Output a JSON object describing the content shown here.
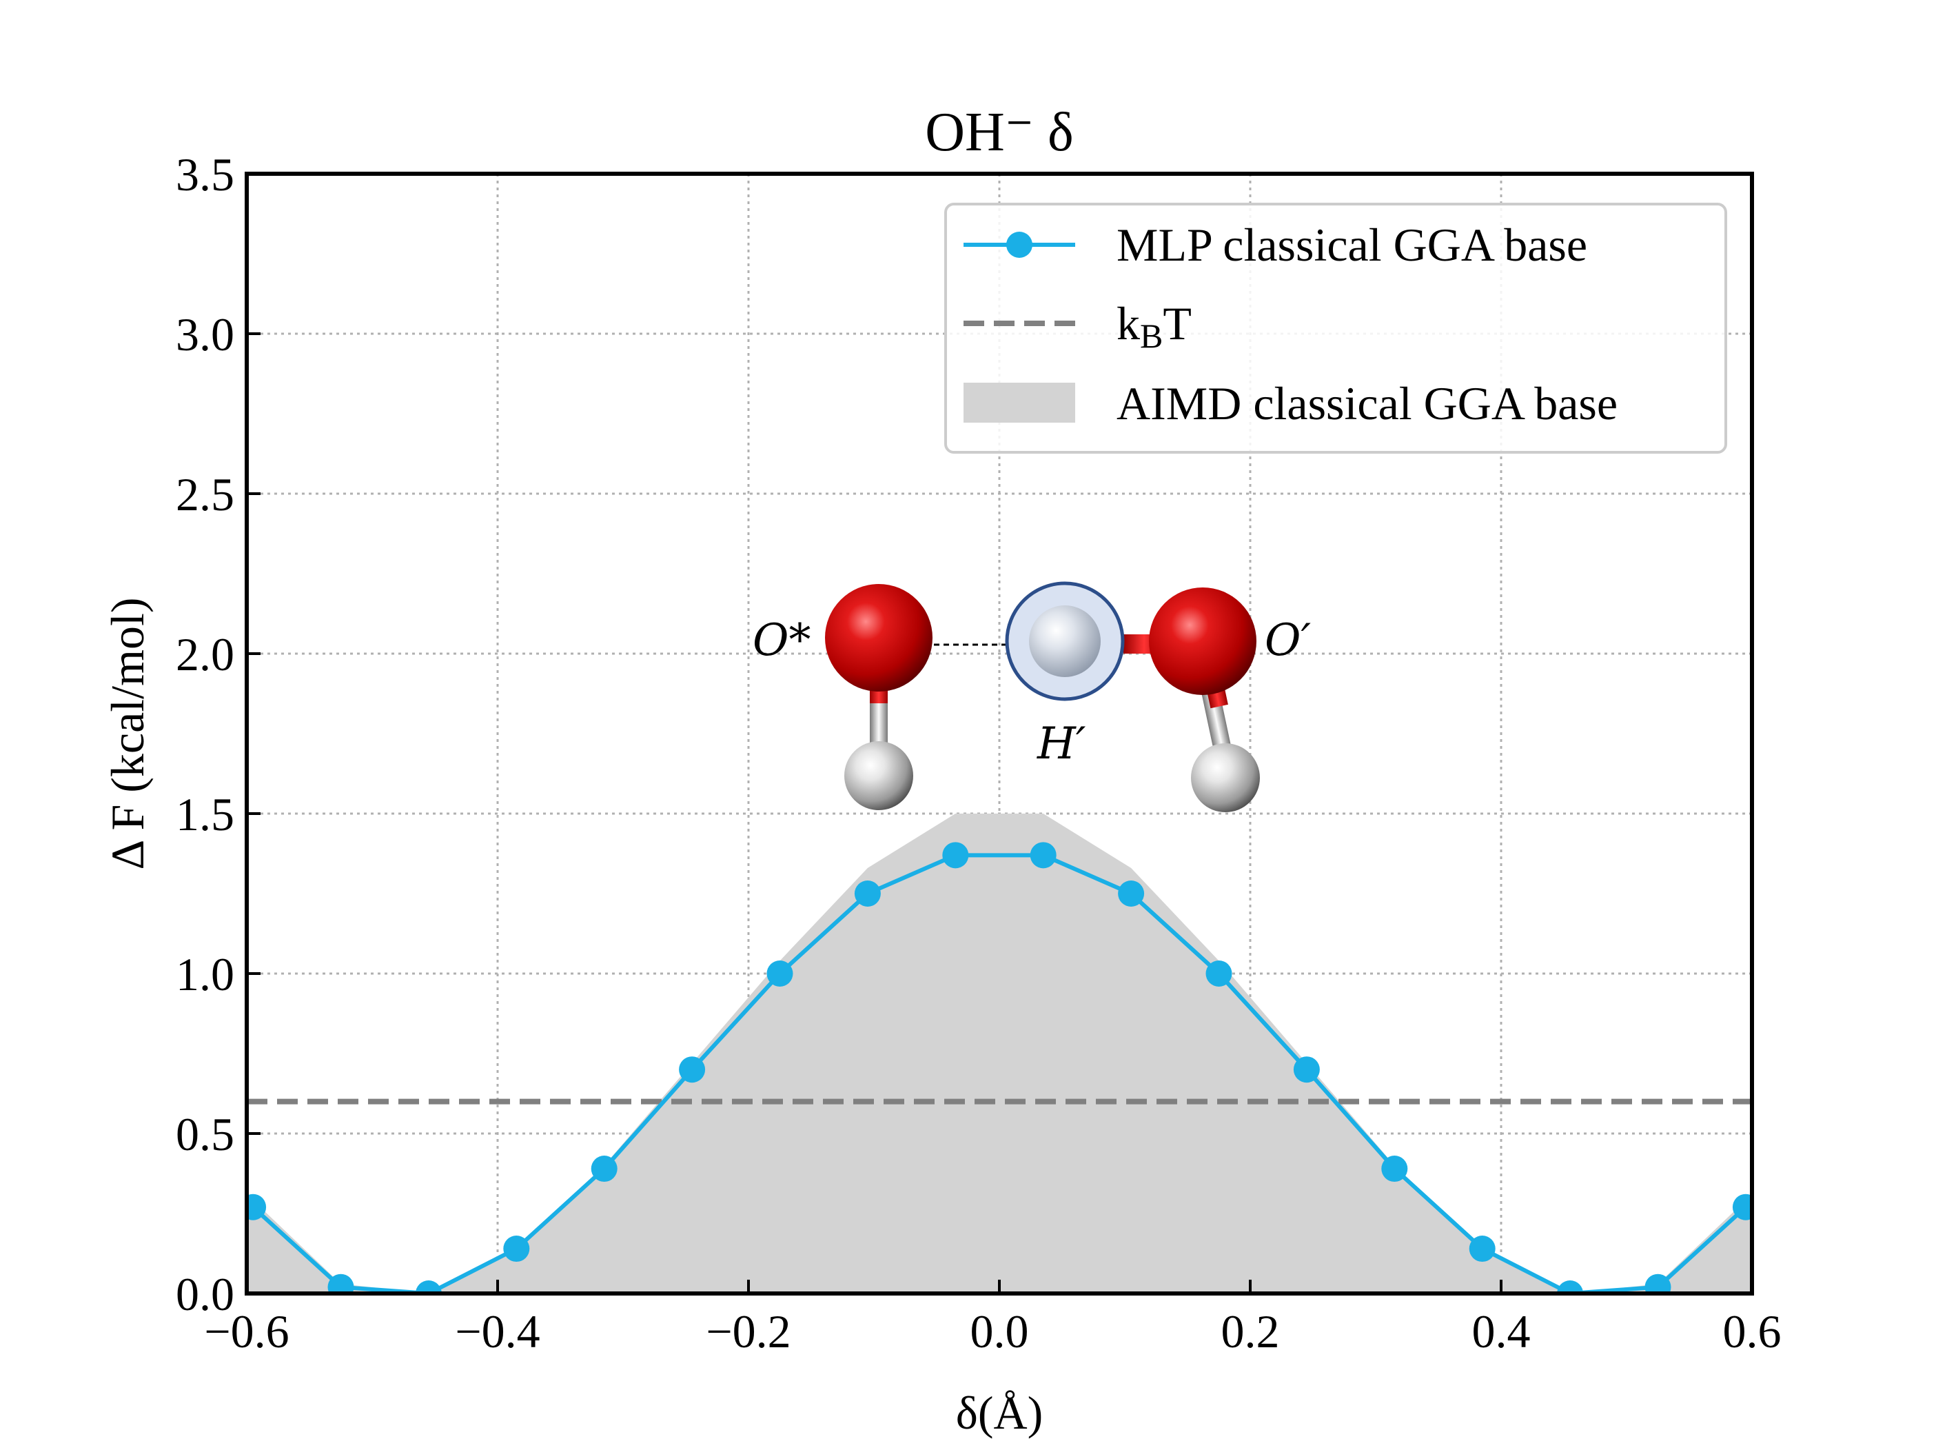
{
  "chart_data": {
    "type": "line",
    "title": "OH⁻ δ",
    "xlabel": "δ(Å)",
    "ylabel": "Δ F (kcal/mol)",
    "xlim": [
      -0.6,
      0.6
    ],
    "ylim": [
      0.0,
      3.5
    ],
    "xticks": [
      -0.6,
      -0.4,
      -0.2,
      0.0,
      0.2,
      0.4,
      0.6
    ],
    "xtick_labels": [
      "−0.6",
      "−0.4",
      "−0.2",
      "0.0",
      "0.2",
      "0.4",
      "0.6"
    ],
    "yticks": [
      0.0,
      0.5,
      1.0,
      1.5,
      2.0,
      2.5,
      3.0,
      3.5
    ],
    "ytick_labels": [
      "0.0",
      "0.5",
      "1.0",
      "1.5",
      "2.0",
      "2.5",
      "3.0",
      "3.5"
    ],
    "grid": true,
    "legend_position": "top-right",
    "series": [
      {
        "name": "MLP classical GGA base",
        "kind": "line-marker",
        "color": "#1AAFE6",
        "x": [
          -0.595,
          -0.525,
          -0.455,
          -0.385,
          -0.315,
          -0.245,
          -0.175,
          -0.105,
          -0.035,
          0.035,
          0.105,
          0.175,
          0.245,
          0.315,
          0.385,
          0.455,
          0.525,
          0.595
        ],
        "y": [
          0.27,
          0.02,
          0.0,
          0.14,
          0.39,
          0.7,
          1.0,
          1.25,
          1.37,
          1.37,
          1.25,
          1.0,
          0.7,
          0.39,
          0.14,
          0.0,
          0.02,
          0.27
        ]
      },
      {
        "name": "k_B T",
        "kind": "hline-dashed",
        "color": "#808080",
        "y": 0.6
      },
      {
        "name": "AIMD classical GGA base",
        "kind": "fill",
        "color": "#D3D3D3",
        "x": [
          -0.6,
          -0.525,
          -0.455,
          -0.385,
          -0.315,
          -0.245,
          -0.175,
          -0.105,
          -0.035,
          0.0,
          0.035,
          0.105,
          0.175,
          0.245,
          0.315,
          0.385,
          0.455,
          0.525,
          0.6
        ],
        "y": [
          0.31,
          0.03,
          0.0,
          0.14,
          0.4,
          0.72,
          1.04,
          1.33,
          1.5,
          1.5,
          1.5,
          1.33,
          1.04,
          0.72,
          0.4,
          0.14,
          0.0,
          0.03,
          0.31
        ]
      }
    ],
    "legend": {
      "mlp_label": "MLP classical GGA base",
      "kbt_label_main": "k",
      "kbt_label_sub": "B",
      "kbt_label_tail": "T",
      "aimd_label": "AIMD classical GGA base"
    },
    "inset": {
      "description_labels": [
        "O*",
        "H′",
        "O′"
      ],
      "label_o_star": "O*",
      "label_h_prime": "H′",
      "label_o_prime": "O′"
    }
  }
}
